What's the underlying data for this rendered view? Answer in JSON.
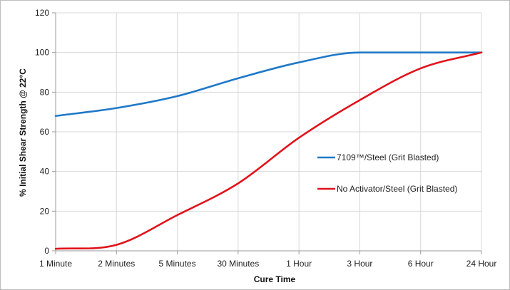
{
  "chart_data": {
    "type": "line",
    "title": "",
    "xlabel": "Cure Time",
    "ylabel": "% Initial Shear Strength @ 22°C",
    "categories": [
      "1 Minute",
      "2 Minutes",
      "5 Minutes",
      "30 Minutes",
      "1 Hour",
      "3 Hour",
      "6 Hour",
      "24 Hour"
    ],
    "ylim": [
      0,
      120
    ],
    "yticks": [
      0,
      20,
      40,
      60,
      80,
      100,
      120
    ],
    "grid": true,
    "legend_position": "right",
    "series": [
      {
        "name": "7109™/Steel (Grit Blasted)",
        "color": "#1f78c8",
        "values": [
          68,
          72,
          78,
          87,
          95,
          100,
          100,
          100
        ]
      },
      {
        "name": "No Activator/Steel (Grit Blasted)",
        "color": "#e0131b",
        "values": [
          1,
          3,
          18,
          34,
          57,
          76,
          92,
          100
        ]
      }
    ]
  }
}
